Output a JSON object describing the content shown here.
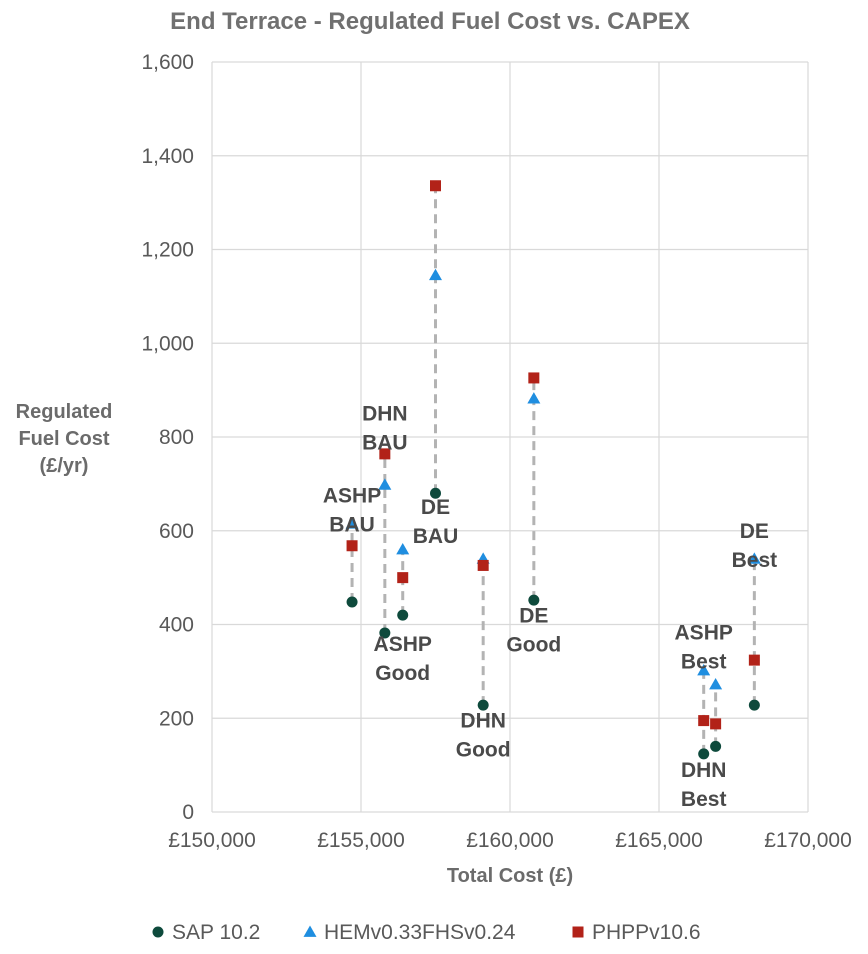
{
  "chart_data": {
    "type": "scatter",
    "title": "End Terrace - Regulated Fuel Cost vs. CAPEX",
    "xlabel": "Total Cost (£)",
    "ylabel_lines": [
      "Regulated",
      "Fuel Cost",
      "(£/yr)"
    ],
    "xlim": [
      150000,
      170000
    ],
    "ylim": [
      0,
      1600
    ],
    "x_ticks": [
      150000,
      155000,
      160000,
      165000,
      170000
    ],
    "x_tick_labels": [
      "£150,000",
      "£155,000",
      "£160,000",
      "£165,000",
      "£170,000"
    ],
    "y_ticks": [
      0,
      200,
      400,
      600,
      800,
      1000,
      1200,
      1400,
      1600
    ],
    "y_tick_labels": [
      "0",
      "200",
      "400",
      "600",
      "800",
      "1,000",
      "1,200",
      "1,400",
      "1,600"
    ],
    "grid": true,
    "legend_position": "bottom",
    "options": [
      "ASHP BAU",
      "DHN BAU",
      "ASHP Good",
      "DE BAU",
      "DHN Good",
      "DE Good",
      "DHN Best",
      "ASHP Best",
      "DE Best"
    ],
    "x": [
      154700,
      155800,
      156400,
      157500,
      159100,
      160800,
      166500,
      166900,
      168200
    ],
    "series": [
      {
        "name": "SAP 10.2",
        "marker": "circle",
        "color": "#0e4a3c",
        "values": [
          448,
          382,
          420,
          680,
          228,
          452,
          124,
          140,
          228
        ]
      },
      {
        "name": "HEMv0.33FHSv0.24",
        "marker": "triangle",
        "color": "#1f8ee0",
        "values": [
          615,
          698,
          560,
          1145,
          540,
          882,
          302,
          272,
          540
        ]
      },
      {
        "name": "PHPPv10.6",
        "marker": "square",
        "color": "#b22218",
        "values": [
          568,
          764,
          500,
          1336,
          526,
          926,
          195,
          188,
          324
        ]
      }
    ],
    "annotations": [
      {
        "lines": [
          "ASHP",
          "BAU"
        ],
        "x": 154700,
        "y": 660
      },
      {
        "lines": [
          "DHN",
          "BAU"
        ],
        "x": 155800,
        "y": 835
      },
      {
        "lines": [
          "ASHP",
          "Good"
        ],
        "x": 156400,
        "y": 343
      },
      {
        "lines": [
          "DE",
          "BAU"
        ],
        "x": 157500,
        "y": 636
      },
      {
        "lines": [
          "DHN",
          "Good"
        ],
        "x": 159100,
        "y": 180
      },
      {
        "lines": [
          "DE",
          "Good"
        ],
        "x": 160800,
        "y": 404
      },
      {
        "lines": [
          "DHN",
          "Best"
        ],
        "x": 166500,
        "y": 75
      },
      {
        "lines": [
          "ASHP",
          "Best"
        ],
        "x": 166500,
        "y": 368
      },
      {
        "lines": [
          "DE",
          "Best"
        ],
        "x": 168200,
        "y": 585
      }
    ],
    "colors": {
      "grid": "#d9d9d9",
      "connector": "#b3b3b3"
    }
  }
}
